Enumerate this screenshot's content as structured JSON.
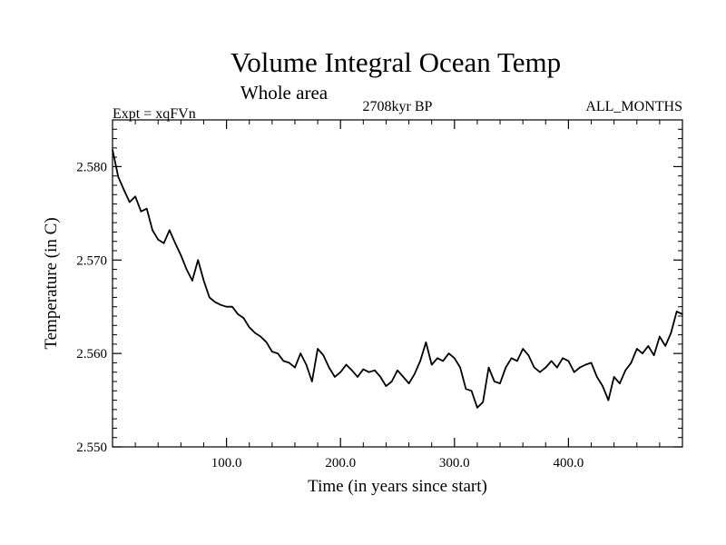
{
  "chart_data": {
    "type": "line",
    "title": "Volume Integral Ocean Temp",
    "subtitle": "Whole area",
    "annotations": {
      "left": "Expt = xqFVn",
      "center": "2708kyr BP",
      "right": "ALL_MONTHS"
    },
    "xlabel": "Time (in years since start)",
    "ylabel": "Temperature (in C)",
    "xlim": [
      0,
      500
    ],
    "ylim": [
      2.55,
      2.585
    ],
    "x_ticks": [
      100,
      200,
      300,
      400
    ],
    "x_tick_labels": [
      "100.0",
      "200.0",
      "300.0",
      "400.0"
    ],
    "y_ticks": [
      2.55,
      2.56,
      2.57,
      2.58
    ],
    "y_tick_labels": [
      "2.550",
      "2.560",
      "2.570",
      "2.580"
    ],
    "grid": false,
    "series": [
      {
        "name": "Volume Integral Ocean Temp",
        "color": "#000000",
        "x": [
          0,
          5,
          10,
          15,
          20,
          25,
          30,
          35,
          40,
          45,
          50,
          55,
          60,
          65,
          70,
          75,
          80,
          85,
          90,
          95,
          100,
          105,
          110,
          115,
          120,
          125,
          130,
          135,
          140,
          145,
          150,
          155,
          160,
          165,
          170,
          175,
          180,
          185,
          190,
          195,
          200,
          205,
          210,
          215,
          220,
          225,
          230,
          235,
          240,
          245,
          250,
          255,
          260,
          265,
          270,
          275,
          280,
          285,
          290,
          295,
          300,
          305,
          310,
          315,
          320,
          325,
          330,
          335,
          340,
          345,
          350,
          355,
          360,
          365,
          370,
          375,
          380,
          385,
          390,
          395,
          400,
          405,
          410,
          415,
          420,
          425,
          430,
          435,
          440,
          445,
          450,
          455,
          460,
          465,
          470,
          475,
          480,
          485,
          490,
          495,
          500
        ],
        "values": [
          2.5818,
          2.5789,
          2.5775,
          2.5762,
          2.5768,
          2.5752,
          2.5755,
          2.5732,
          2.5722,
          2.5718,
          2.5732,
          2.5718,
          2.5705,
          2.569,
          2.5678,
          2.57,
          2.5678,
          2.566,
          2.5655,
          2.5652,
          2.565,
          2.565,
          2.5642,
          2.5638,
          2.5628,
          2.5622,
          2.5618,
          2.5612,
          2.5602,
          2.56,
          2.5592,
          2.559,
          2.5585,
          2.56,
          2.5588,
          2.557,
          2.5605,
          2.5598,
          2.5585,
          2.5575,
          2.558,
          2.5588,
          2.5582,
          2.5575,
          2.5583,
          2.558,
          2.5582,
          2.5575,
          2.5565,
          2.557,
          2.5582,
          2.5575,
          2.5568,
          2.5578,
          2.5592,
          2.5612,
          2.5588,
          2.5595,
          2.5592,
          2.56,
          2.5595,
          2.5585,
          2.5562,
          2.556,
          2.5542,
          2.5548,
          2.5585,
          2.557,
          2.5568,
          2.5585,
          2.5595,
          2.5592,
          2.5605,
          2.5598,
          2.5585,
          2.558,
          2.5585,
          2.5592,
          2.5585,
          2.5595,
          2.5592,
          2.558,
          2.5585,
          2.5588,
          2.559,
          2.5575,
          2.5565,
          2.555,
          2.5575,
          2.5568,
          2.5582,
          2.559,
          2.5605,
          2.56,
          2.5608,
          2.5598,
          2.5618,
          2.5608,
          2.5622,
          2.5645,
          2.5642
        ]
      }
    ]
  }
}
